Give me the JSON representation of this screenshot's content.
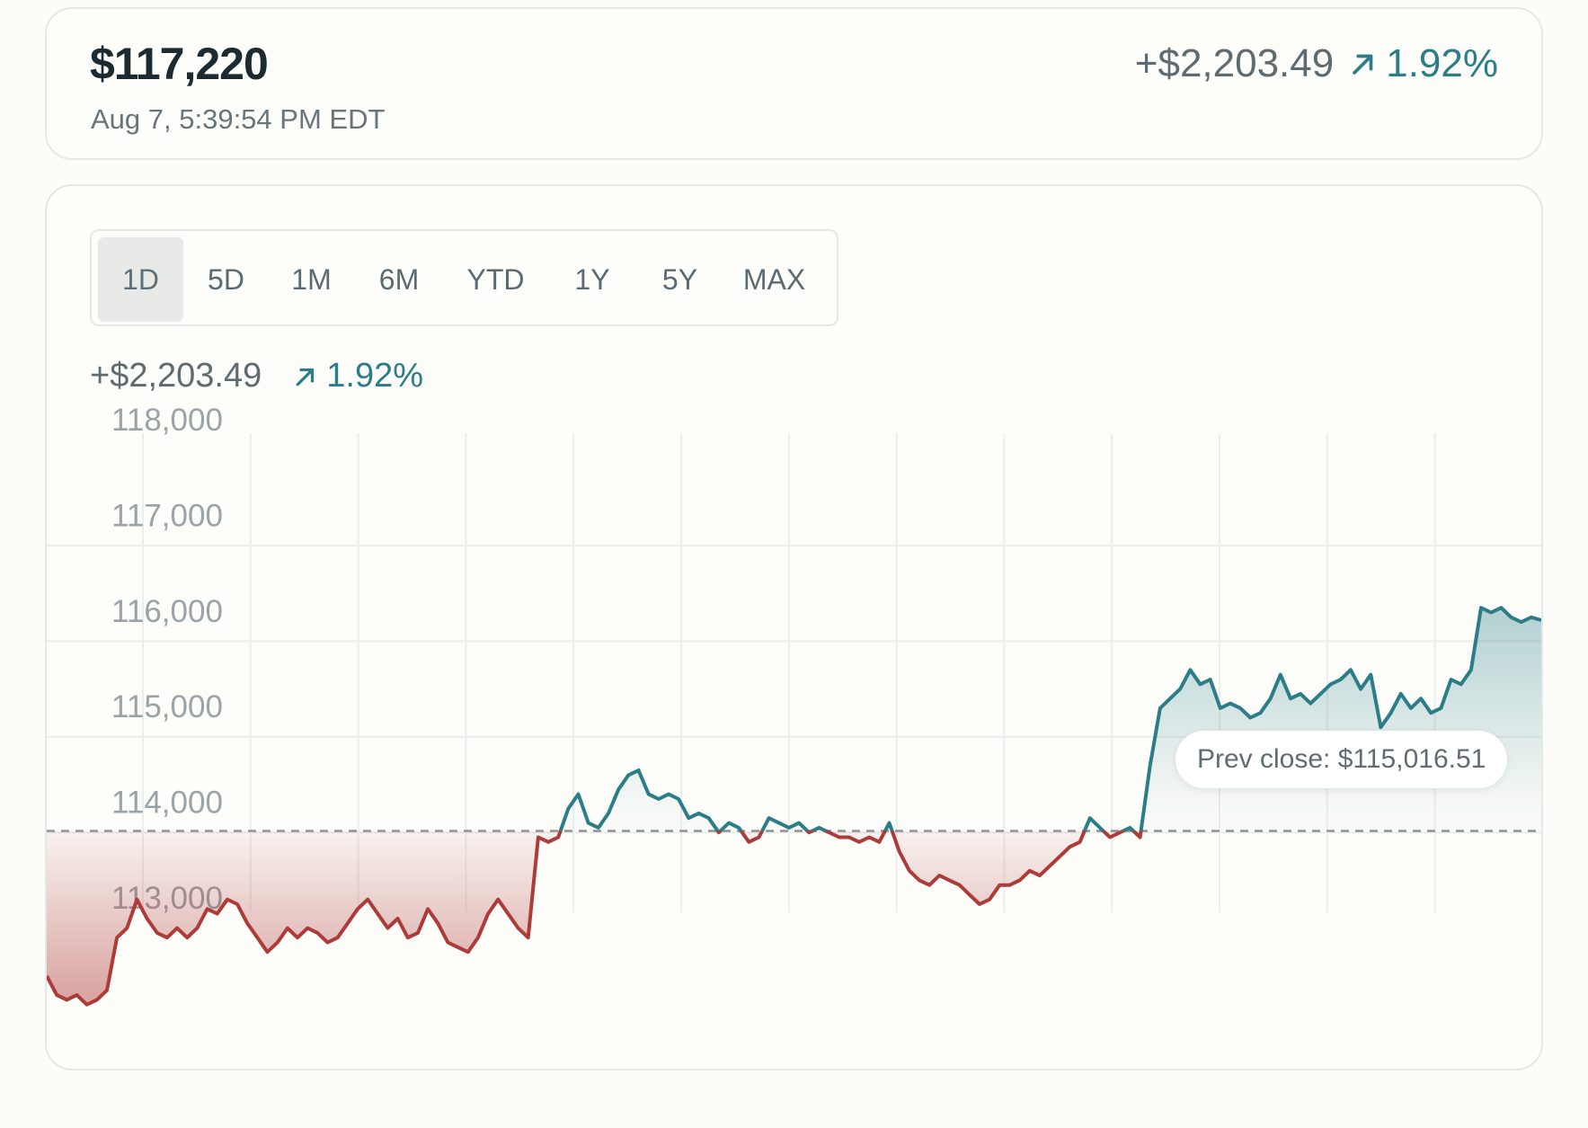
{
  "header": {
    "price": "$117,220",
    "timestamp": "Aug 7, 5:39:54 PM EDT",
    "change_amount": "+$2,203.49",
    "change_percent": "1.92%",
    "trend_icon": "arrow-up-right-icon"
  },
  "range_tabs": {
    "active": "1D",
    "items": [
      {
        "label": "1D"
      },
      {
        "label": "5D"
      },
      {
        "label": "1M"
      },
      {
        "label": "6M"
      },
      {
        "label": "YTD"
      },
      {
        "label": "1Y"
      },
      {
        "label": "5Y"
      },
      {
        "label": "MAX"
      }
    ]
  },
  "range_change": {
    "amount": "+$2,203.49",
    "percent": "1.92%"
  },
  "colors": {
    "up": "#2b7d87",
    "down": "#ad3b38",
    "baseline": "#8e9496",
    "grid": "#eceeea"
  },
  "chart_data": {
    "type": "line",
    "title": "",
    "xlabel": "",
    "ylabel": "",
    "ylim": [
      112800,
      118250
    ],
    "yticks": [
      "118,000",
      "117,000",
      "116,000",
      "115,000",
      "114,000",
      "113,000"
    ],
    "ytick_values": [
      118000,
      117000,
      116000,
      115000,
      114000,
      113000
    ],
    "baseline": 115016.51,
    "baseline_label": "Prev close: $115,016.51",
    "grid": true,
    "series": [
      {
        "values": [
          113500,
          113300,
          113250,
          113300,
          113200,
          113250,
          113350,
          113900,
          114000,
          114300,
          114100,
          113950,
          113900,
          114000,
          113900,
          114000,
          114200,
          114150,
          114300,
          114250,
          114050,
          113900,
          113750,
          113850,
          114000,
          113900,
          114000,
          113950,
          113850,
          113900,
          114050,
          114200,
          114300,
          114150,
          114000,
          114100,
          113900,
          113950,
          114200,
          114050,
          113850,
          113800,
          113750,
          113900,
          114150,
          114300,
          114150,
          114000,
          113900,
          114950,
          114900,
          114950,
          115250,
          115400,
          115100,
          115050,
          115200,
          115450,
          115600,
          115650,
          115400,
          115350,
          115400,
          115350,
          115150,
          115200,
          115150,
          115000,
          115100,
          115050,
          114900,
          114950,
          115150,
          115100,
          115050,
          115100,
          115000,
          115050,
          115000,
          114950,
          114950,
          114900,
          114950,
          114900,
          115100,
          114800,
          114600,
          114500,
          114450,
          114550,
          114500,
          114450,
          114350,
          114250,
          114300,
          114450,
          114450,
          114500,
          114600,
          114550,
          114650,
          114750,
          114850,
          114900,
          115150,
          115050,
          114950,
          115000,
          115050,
          114950,
          115700,
          116300,
          116400,
          116500,
          116700,
          116550,
          116600,
          116300,
          116350,
          116300,
          116200,
          116250,
          116400,
          116650,
          116400,
          116450,
          116350,
          116450,
          116550,
          116600,
          116700,
          116500,
          116650,
          116100,
          116250,
          116450,
          116300,
          116400,
          116250,
          116300,
          116600,
          116550,
          116700,
          117350,
          117300,
          117350,
          117250,
          117200,
          117250,
          117220
        ]
      }
    ]
  }
}
